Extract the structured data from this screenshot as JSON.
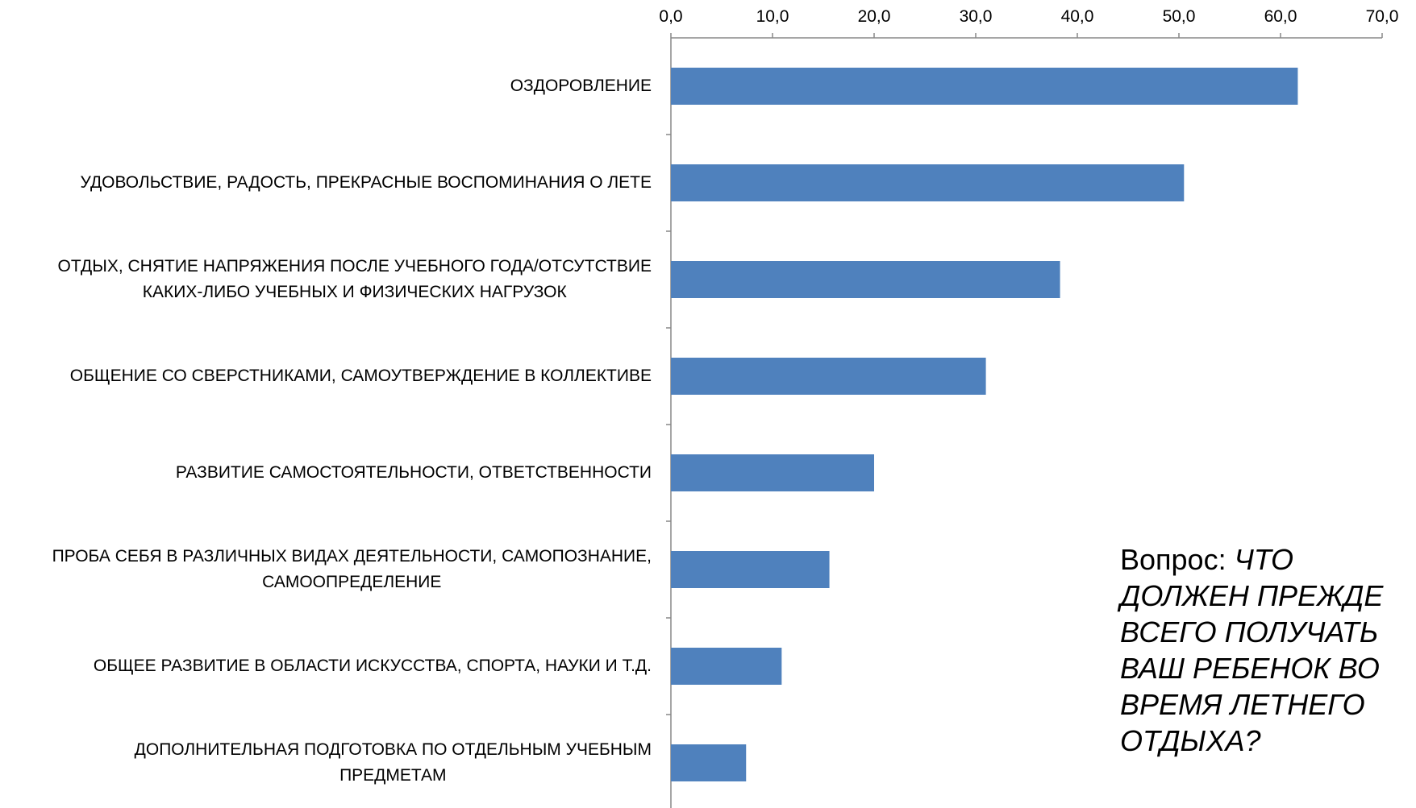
{
  "chart_data": {
    "type": "barh",
    "categories": [
      [
        "ОЗДОРОВЛЕНИЕ"
      ],
      [
        "УДОВОЛЬСТВИЕ,  РАДОСТЬ, ПРЕКРАСНЫЕ ВОСПОМИНАНИЯ  О ЛЕТЕ"
      ],
      [
        "ОТДЫХ, СНЯТИЕ НАПРЯЖЕНИЯ ПОСЛЕ УЧЕБНОГО ГОДА/ОТСУТСТВИЕ",
        "КАКИХ-ЛИБО  УЧЕБНЫХ И ФИЗИЧЕСКИХ  НАГРУЗОК"
      ],
      [
        "ОБЩЕНИЕ СО СВЕРСТНИКАМИ,  САМОУТВЕРЖДЕНИЕ В КОЛЛЕКТИВЕ"
      ],
      [
        "РАЗВИТИЕ САМОСТОЯТЕЛЬНОСТИ, ОТВЕТСТВЕННОСТИ"
      ],
      [
        "ПРОБА СЕБЯ  В РАЗЛИЧНЫХ ВИДАХ ДЕЯТЕЛЬНОСТИ, САМОПОЗНАНИЕ,",
        "САМООПРЕДЕЛЕНИЕ"
      ],
      [
        "ОБЩЕЕ РАЗВИТИЕ В ОБЛАСТИ ИСКУССТВА,  СПОРТА, НАУКИ И Т.Д."
      ],
      [
        "ДОПОЛНИТЕЛЬНАЯ  ПОДГОТОВКА ПО ОТДЕЛЬНЫМ УЧЕБНЫМ",
        "ПРЕДМЕТАМ"
      ]
    ],
    "values": [
      61.7,
      50.5,
      38.3,
      31.0,
      20.0,
      15.6,
      10.9,
      7.4
    ],
    "color": "#4f81bd",
    "xlim": [
      0,
      70
    ],
    "xticks": [
      {
        "value": 0,
        "label": "0,0"
      },
      {
        "value": 10,
        "label": "10,0"
      },
      {
        "value": 20,
        "label": "20,0"
      },
      {
        "value": 30,
        "label": "30,0"
      },
      {
        "value": 40,
        "label": "40,0"
      },
      {
        "value": 50,
        "label": "50,0"
      },
      {
        "value": 60,
        "label": "60,0"
      },
      {
        "value": 70,
        "label": "70,0"
      }
    ],
    "annotation": {
      "label": "Вопрос:",
      "text": "ЧТО ДОЛЖЕН ПРЕЖДЕ ВСЕГО ПОЛУЧАТЬ ВАШ РЕБЕНОК ВО ВРЕМЯ ЛЕТНЕГО ОТДЫХА?"
    }
  }
}
